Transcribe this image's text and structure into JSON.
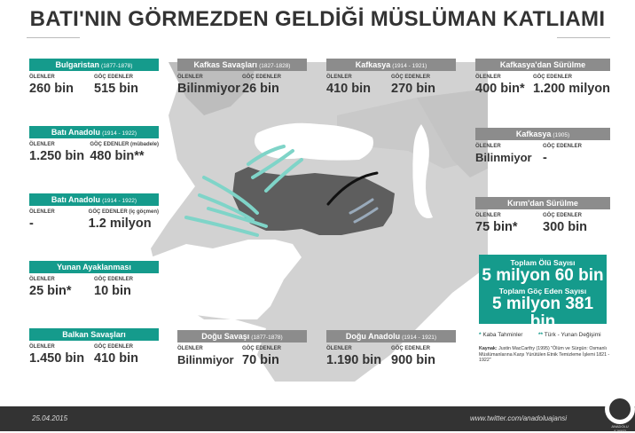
{
  "title": "BATI'NIN GÖRMEZDEN GELDİĞİ MÜSLÜMAN KATLIAMI",
  "panels": {
    "bulgaristan": {
      "title": "Bulgaristan",
      "years": "(1877-1878)",
      "l1": "ÖLENLER",
      "v1": "260 bin",
      "l2": "GÖÇ EDENLER",
      "v2": "515 bin"
    },
    "bati_anadolu_1": {
      "title": "Batı Anadolu",
      "years": "(1914 - 1922)",
      "l1": "ÖLENLER",
      "v1": "1.250 bin",
      "l2": "GÖÇ EDENLER (mübadele)",
      "v2": "480 bin**"
    },
    "bati_anadolu_2": {
      "title": "Batı Anadolu",
      "years": "(1914 - 1922)",
      "l1": "ÖLENLER",
      "v1": "-",
      "l2": "GÖÇ EDENLER (iç göçmen)",
      "v2": "1.2 milyon"
    },
    "yunan": {
      "title": "Yunan Ayaklanması",
      "years": "",
      "l1": "ÖLENLER",
      "v1": "25 bin*",
      "l2": "GÖÇ EDENLER",
      "v2": "10 bin"
    },
    "balkan": {
      "title": "Balkan Savaşları",
      "years": "",
      "l1": "ÖLENLER",
      "v1": "1.450 bin",
      "l2": "GÖÇ EDENLER",
      "v2": "410 bin"
    },
    "kafkas_savaslari": {
      "title": "Kafkas Savaşları",
      "years": "(1827-1828)",
      "l1": "ÖLENLER",
      "v1": "Bilinmiyor",
      "l2": "GÖÇ EDENLER",
      "v2": "26 bin"
    },
    "kafkasya_1914": {
      "title": "Kafkasya",
      "years": "(1914 - 1921)",
      "l1": "ÖLENLER",
      "v1": "410 bin",
      "l2": "GÖÇ EDENLER",
      "v2": "270 bin"
    },
    "kafkasya_surgun": {
      "title": "Kafkasya'dan Sürülme",
      "years": "",
      "l1": "ÖLENLER",
      "v1": "400 bin*",
      "l2": "GÖÇ EDENLER",
      "v2": "1.200 milyon"
    },
    "kafkasya_1905": {
      "title": "Kafkasya",
      "years": "(1905)",
      "l1": "ÖLENLER",
      "v1": "Bilinmiyor",
      "l2": "GÖÇ EDENLER",
      "v2": "-"
    },
    "kirim": {
      "title": "Kırım'dan Sürülme",
      "years": "",
      "l1": "ÖLENLER",
      "v1": "75 bin*",
      "l2": "GÖÇ EDENLER",
      "v2": "300 bin"
    },
    "dogu_savasi": {
      "title": "Doğu Savaşı",
      "years": "(1877-1878)",
      "l1": "ÖLENLER",
      "v1": "Bilinmiyor",
      "l2": "GÖÇ EDENLER",
      "v2": "70 bin"
    },
    "dogu_anadolu": {
      "title": "Doğu Anadolu",
      "years": "(1914 - 1921)",
      "l1": "ÖLENLER",
      "v1": "1.190 bin",
      "l2": "GÖÇ EDENLER",
      "v2": "900 bin"
    }
  },
  "totals": {
    "dead_label": "Toplam Ölü Sayısı",
    "dead_value": "5 milyon 60 bin",
    "migrants_label": "Toplam Göç Eden Sayısı",
    "migrants_value": "5 milyon 381 bin"
  },
  "legend": {
    "star1": "*",
    "star1_text": "Kaba Tahminler",
    "star2": "**",
    "star2_text": "Türk - Yunan Değişimi"
  },
  "source": {
    "label": "Kaynak:",
    "text": "Justin MacCarthy (1995) \"Ölüm ve Sürgün: Osmanlı Müslümanlarına Karşı Yürütülen Etnik Temizleme İşlemi 1821 - 1922\""
  },
  "footer": {
    "date": "25.04.2015",
    "twitter": "www.twitter.com/anadoluajansi",
    "logo_text": "ANADOLU AJANSI"
  },
  "colors": {
    "accent": "#159b8c",
    "header_gray": "#8c8c8c",
    "footer": "#333333",
    "map_land": "#d0d0d0",
    "turkey": "#5e5e5e"
  }
}
